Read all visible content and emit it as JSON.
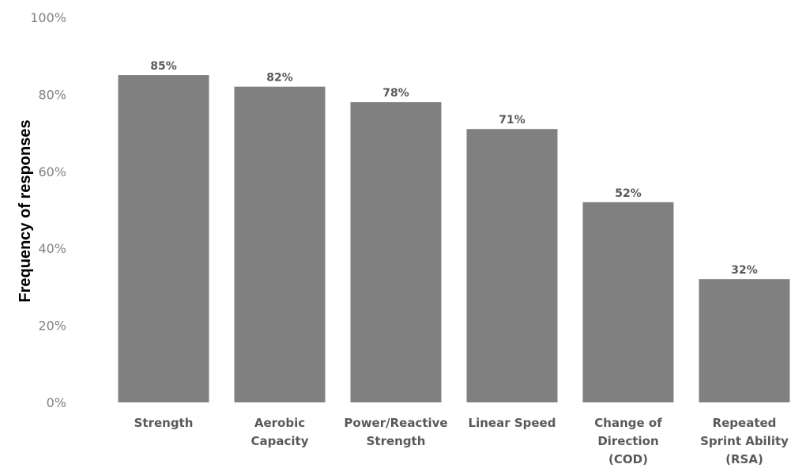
{
  "chart_data": {
    "type": "bar",
    "title": "",
    "xlabel": "",
    "ylabel": "Frequency of responses",
    "ylim": [
      0,
      100
    ],
    "y_ticks": [
      "0%",
      "20%",
      "40%",
      "60%",
      "80%",
      "100%"
    ],
    "y_tick_values": [
      0,
      20,
      40,
      60,
      80,
      100
    ],
    "grid": false,
    "legend": "none",
    "bar_color": "#808080",
    "categories": [
      [
        "Strength"
      ],
      [
        "Aerobic",
        "Capacity"
      ],
      [
        "Power/Reactive",
        "Strength"
      ],
      [
        "Linear Speed"
      ],
      [
        "Change of",
        "Direction",
        "(COD)"
      ],
      [
        "Repeated",
        "Sprint Ability",
        "(RSA)"
      ]
    ],
    "values": [
      85,
      82,
      78,
      71,
      52,
      32
    ],
    "data_labels": [
      "85%",
      "82%",
      "78%",
      "71%",
      "52%",
      "32%"
    ]
  }
}
